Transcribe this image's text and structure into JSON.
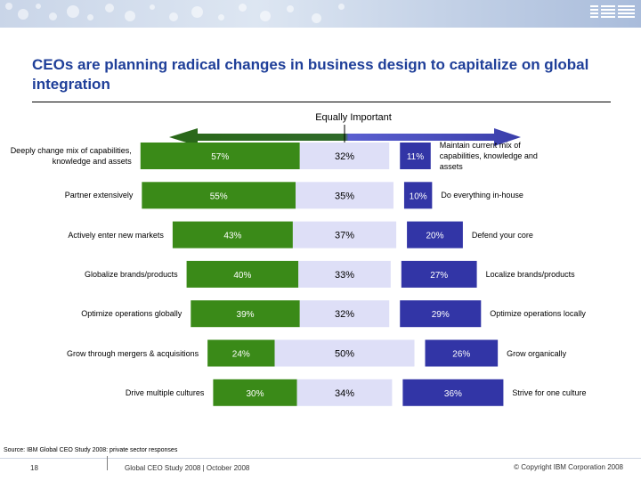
{
  "header": {
    "logo_text": "IBM",
    "title": "CEOs are planning radical changes in business design to capitalize on global integration"
  },
  "center_label": "Equally Important",
  "colors": {
    "left_bar": "#3a8a18",
    "middle_bar": "#dedff7",
    "right_bar": "#3235a6",
    "arrow_left": "#2a6818",
    "arrow_right": "#3a3eaa",
    "title": "#1f3f99"
  },
  "chart_data": {
    "type": "bar",
    "subtype": "diverging-stacked-horizontal",
    "categories_left": [
      "Deeply change mix of capabilities, knowledge and assets",
      "Partner extensively",
      "Actively enter new markets",
      "Globalize brands/products",
      "Optimize operations globally",
      "Grow through mergers & acquisitions",
      "Drive multiple cultures"
    ],
    "categories_right": [
      "Maintain current mix of capabilities, knowledge and assets",
      "Do everything in-house",
      "Defend your core",
      "Localize brands/products",
      "Optimize operations locally",
      "Grow organically",
      "Strive for one culture"
    ],
    "series": [
      {
        "values": [
          57,
          55,
          43,
          40,
          39,
          24,
          30
        ],
        "labels": [
          "57%",
          "55%",
          "43%",
          "40%",
          "39%",
          "24%",
          "30%"
        ]
      },
      {
        "name": "Equally Important",
        "values": [
          32,
          35,
          37,
          33,
          32,
          50,
          34
        ],
        "labels": [
          "32%",
          "35%",
          "37%",
          "33%",
          "32%",
          "50%",
          "34%"
        ]
      },
      {
        "values": [
          11,
          10,
          20,
          27,
          29,
          26,
          36
        ],
        "labels": [
          "11%",
          "10%",
          "20%",
          "27%",
          "29%",
          "26%",
          "36%"
        ]
      }
    ],
    "xlim": [
      0,
      100
    ]
  },
  "footer": {
    "source": "Source: IBM Global CEO Study 2008: private sector responses",
    "page_number": "18",
    "study": "Global CEO Study 2008  |  October 2008",
    "copyright": "© Copyright IBM Corporation 2008"
  }
}
